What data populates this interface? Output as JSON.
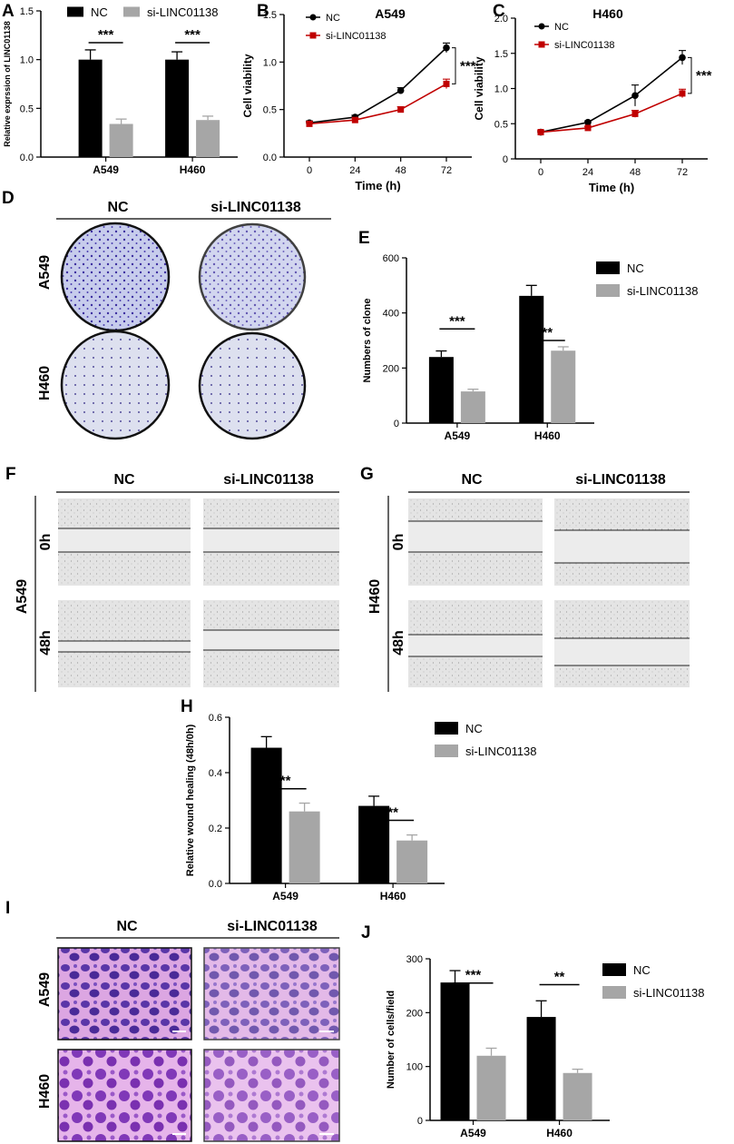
{
  "panels": {
    "A": "A",
    "B": "B",
    "C": "C",
    "D": "D",
    "E": "E",
    "F": "F",
    "G": "G",
    "H": "H",
    "I": "I",
    "J": "J"
  },
  "colors": {
    "nc_bar": "#000000",
    "si_bar": "#a6a6a6",
    "nc_line": "#000000",
    "si_line": "#c00000",
    "crystal_violet": "#3d2fa0",
    "plate_bg": "#d8ddf0",
    "wound_bg": "#e6e6e6",
    "transwell_bg": "#e9b6e9"
  },
  "image_panels": {
    "D": {
      "col_headers": [
        "NC",
        "si-LINC01138"
      ],
      "row_labels": [
        "A549",
        "H460"
      ],
      "image_type": "colony formation plates"
    },
    "F": {
      "col_headers": [
        "NC",
        "si-LINC01138"
      ],
      "cell_line": "A549",
      "time_labels": [
        "0h",
        "48h"
      ],
      "image_type": "wound healing micrographs"
    },
    "G": {
      "col_headers": [
        "NC",
        "si-LINC01138"
      ],
      "cell_line": "H460",
      "time_labels": [
        "0h",
        "48h"
      ],
      "image_type": "wound healing micrographs"
    },
    "I": {
      "col_headers": [
        "NC",
        "si-LINC01138"
      ],
      "row_labels": [
        "A549",
        "H460"
      ],
      "image_type": "transwell micrographs"
    }
  },
  "chart_data": [
    {
      "panel": "A",
      "type": "bar",
      "title": "",
      "categories": [
        "A549",
        "H460"
      ],
      "series": [
        {
          "name": "NC",
          "values": [
            1.0,
            1.0
          ],
          "errors": [
            0.1,
            0.08
          ]
        },
        {
          "name": "si-LINC01138",
          "values": [
            0.34,
            0.38
          ],
          "errors": [
            0.05,
            0.04
          ]
        }
      ],
      "ylabel": "Relative exprssion of LINC01138",
      "xlabel": "",
      "ylim": [
        0,
        1.5
      ],
      "yticks": [
        "0.0",
        "0.5",
        "1.0",
        "1.5"
      ],
      "significance": [
        "***",
        "***"
      ],
      "legend": "top"
    },
    {
      "panel": "B",
      "type": "line",
      "title": "A549",
      "x": [
        0,
        24,
        48,
        72
      ],
      "xticks": [
        "0",
        "24",
        "48",
        "72"
      ],
      "series": [
        {
          "name": "NC",
          "values": [
            0.36,
            0.42,
            0.7,
            1.15
          ],
          "errors": [
            0.02,
            0.02,
            0.03,
            0.05
          ]
        },
        {
          "name": "si-LINC01138",
          "values": [
            0.35,
            0.39,
            0.5,
            0.77
          ],
          "errors": [
            0.02,
            0.02,
            0.03,
            0.05
          ]
        }
      ],
      "xlabel": "Time (h)",
      "ylabel": "Cell viability",
      "ylim": [
        0,
        1.5
      ],
      "yticks": [
        "0.0",
        "0.5",
        "1.0",
        "1.5"
      ],
      "significance": [
        "***"
      ],
      "legend": "top-left"
    },
    {
      "panel": "C",
      "type": "line",
      "title": "H460",
      "x": [
        0,
        24,
        48,
        72
      ],
      "xticks": [
        "0",
        "24",
        "48",
        "72"
      ],
      "series": [
        {
          "name": "NC",
          "values": [
            0.38,
            0.52,
            0.9,
            1.44
          ],
          "errors": [
            0.02,
            0.02,
            0.15,
            0.1
          ]
        },
        {
          "name": "si-LINC01138",
          "values": [
            0.38,
            0.44,
            0.64,
            0.93
          ],
          "errors": [
            0.02,
            0.02,
            0.05,
            0.06
          ]
        }
      ],
      "xlabel": "Time (h)",
      "ylabel": "Cell viability",
      "ylim": [
        0,
        2.0
      ],
      "yticks": [
        "0",
        "0.5",
        "1.0",
        "1.5",
        "2.0"
      ],
      "significance": [
        "***"
      ],
      "legend": "top-left"
    },
    {
      "panel": "E",
      "type": "bar",
      "title": "",
      "categories": [
        "A549",
        "H460"
      ],
      "series": [
        {
          "name": "NC",
          "values": [
            240,
            462
          ],
          "errors": [
            22,
            38
          ]
        },
        {
          "name": "si-LINC01138",
          "values": [
            115,
            263
          ],
          "errors": [
            8,
            14
          ]
        }
      ],
      "ylabel": "Numbers of clone",
      "xlabel": "",
      "ylim": [
        0,
        600
      ],
      "yticks": [
        "0",
        "200",
        "400",
        "600"
      ],
      "significance": [
        "***",
        "**"
      ],
      "legend": "right"
    },
    {
      "panel": "H",
      "type": "bar",
      "title": "",
      "categories": [
        "A549",
        "H460"
      ],
      "series": [
        {
          "name": "NC",
          "values": [
            0.49,
            0.28
          ],
          "errors": [
            0.04,
            0.035
          ]
        },
        {
          "name": "si-LINC01138",
          "values": [
            0.26,
            0.155
          ],
          "errors": [
            0.03,
            0.02
          ]
        }
      ],
      "ylabel": "Relative wound healing (48h/0h)",
      "xlabel": "",
      "ylim": [
        0,
        0.6
      ],
      "yticks": [
        "0.0",
        "0.2",
        "0.4",
        "0.6"
      ],
      "significance": [
        "**",
        "**"
      ],
      "legend": "right"
    },
    {
      "panel": "J",
      "type": "bar",
      "title": "",
      "categories": [
        "A549",
        "H460"
      ],
      "series": [
        {
          "name": "NC",
          "values": [
            256,
            192
          ],
          "errors": [
            22,
            30
          ]
        },
        {
          "name": "si-LINC01138",
          "values": [
            120,
            88
          ],
          "errors": [
            14,
            7
          ]
        }
      ],
      "ylabel": "Number of cells/field",
      "xlabel": "",
      "ylim": [
        0,
        300
      ],
      "yticks": [
        "0",
        "100",
        "200",
        "300"
      ],
      "significance": [
        "***",
        "**"
      ],
      "legend": "right"
    }
  ]
}
